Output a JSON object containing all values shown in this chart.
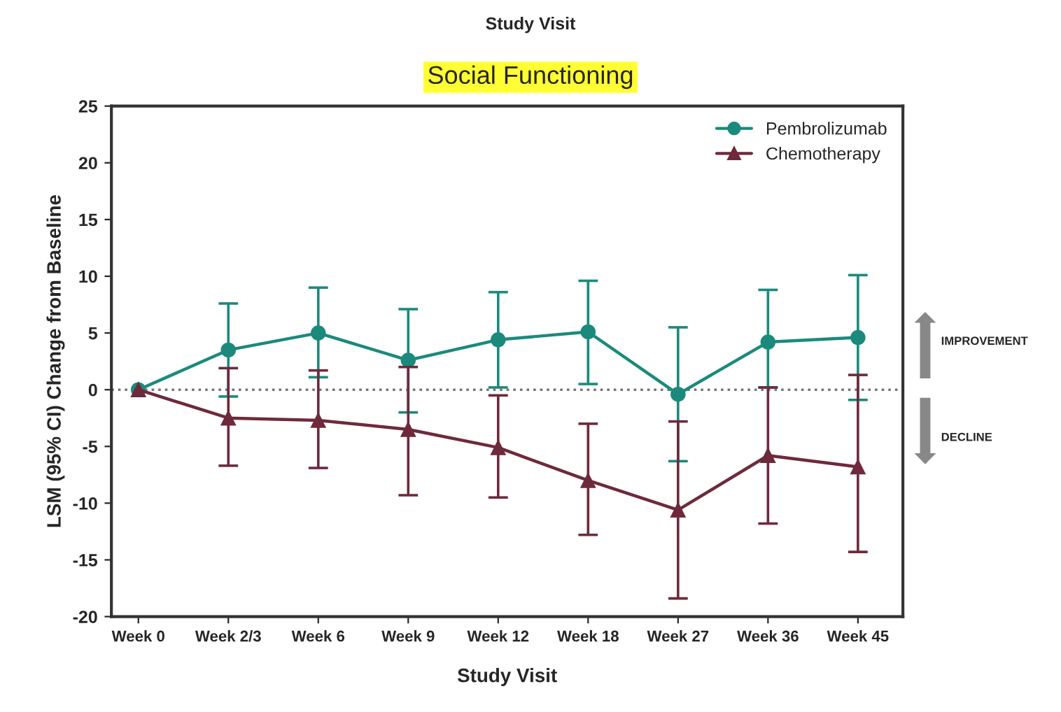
{
  "chart_data": {
    "type": "line",
    "title": "Social Functioning",
    "subtitle": "Study Visit",
    "xlabel": "Study Visit",
    "ylabel": "LSM (95% CI) Change from Baseline",
    "categories": [
      "Week 0",
      "Week 2/3",
      "Week 6",
      "Week 9",
      "Week 12",
      "Week 18",
      "Week 27",
      "Week 36",
      "Week 45"
    ],
    "series": [
      {
        "name": "Pembrolizumab",
        "color": "#1b8a7c",
        "marker": "circle",
        "values": [
          0,
          3.5,
          5.0,
          2.6,
          4.4,
          5.1,
          -0.4,
          4.2,
          4.6
        ],
        "errors": [
          null,
          [
            -0.6,
            7.6
          ],
          [
            1.1,
            9.0
          ],
          [
            -2.0,
            7.1
          ],
          [
            0.2,
            8.6
          ],
          [
            0.5,
            9.6
          ],
          [
            -6.3,
            5.5
          ],
          [
            0.2,
            8.8
          ],
          [
            -0.9,
            10.1
          ]
        ]
      },
      {
        "name": "Chemotherapy",
        "color": "#6e2a3c",
        "marker": "triangle",
        "values": [
          0,
          -2.5,
          -2.7,
          -3.5,
          -5.1,
          -8.0,
          -10.6,
          -5.8,
          -6.8
        ],
        "errors": [
          null,
          [
            -6.7,
            1.9
          ],
          [
            -6.9,
            1.7
          ],
          [
            -9.3,
            2.0
          ],
          [
            -9.5,
            -0.5
          ],
          [
            -12.8,
            -3.0
          ],
          [
            -18.4,
            -2.8
          ],
          [
            -11.8,
            0.2
          ],
          [
            -14.3,
            1.3
          ]
        ]
      }
    ],
    "ylim": [
      -20,
      25
    ],
    "yticks": [
      -20,
      -15,
      -10,
      -5,
      0,
      5,
      10,
      15,
      20,
      25
    ],
    "ref_lines": [
      {
        "axis": "y",
        "value": 0,
        "color": "#777777",
        "line_style": "dotted"
      }
    ],
    "annotations": [
      "IMPROVEMENT",
      "DECLINE"
    ],
    "legend": "top right",
    "grid": false
  }
}
